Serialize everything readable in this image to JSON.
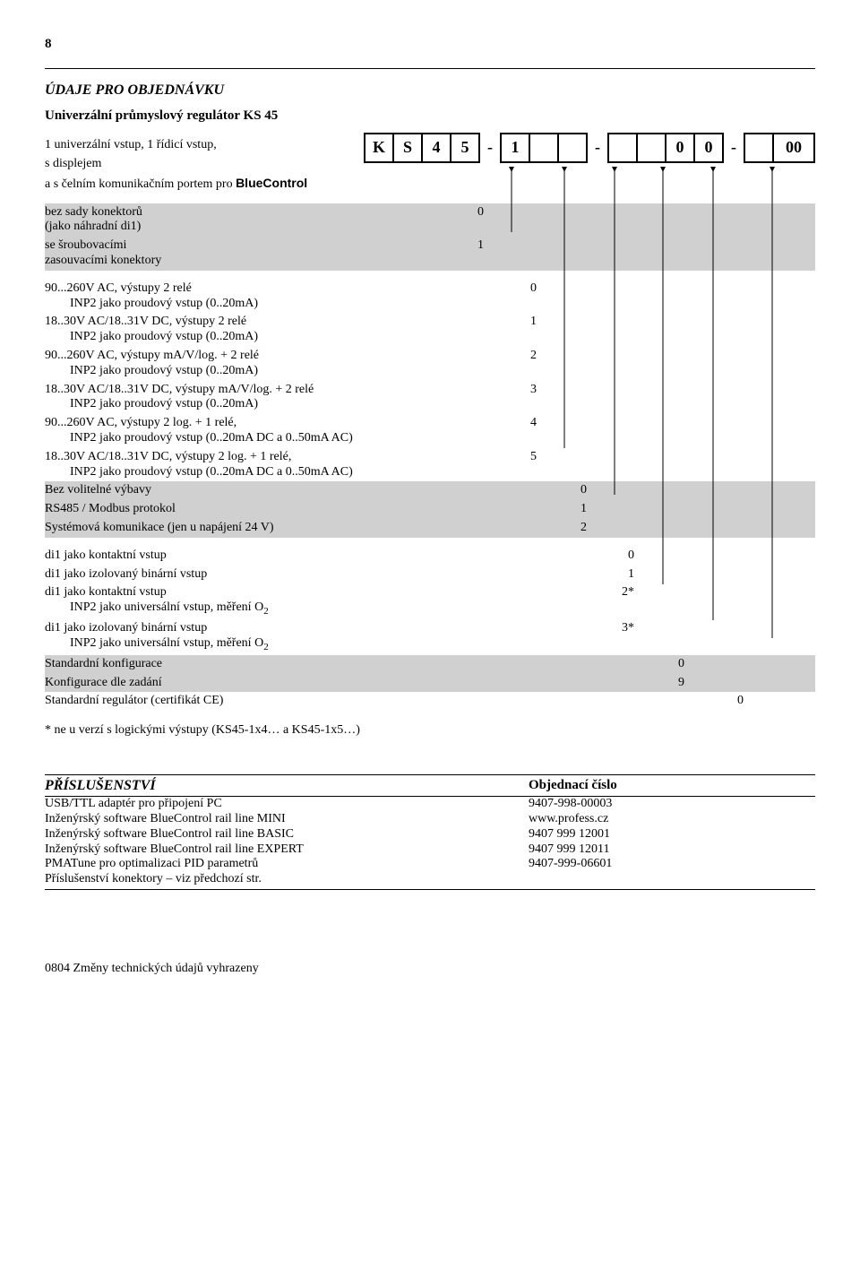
{
  "page_number": "8",
  "section_title": "ÚDAJE PRO OBJEDNÁVKU",
  "subtitle": "Univerzální průmyslový regulátor KS 45",
  "code_cells": [
    "K",
    "S",
    "4",
    "5",
    "-",
    "1",
    "",
    "",
    "-",
    "",
    "",
    "0",
    "0",
    "-",
    "",
    "00"
  ],
  "intro_line1": "1 univerzální vstup, 1 řídicí vstup,",
  "intro_line2": "s displejem",
  "intro_line3_a": "a s čelním komunikačním portem pro ",
  "intro_line3_b": "BlueControl",
  "r_gray1_a": {
    "label": "bez sady konektorů (jako náhradní di1)",
    "val": "0"
  },
  "r_gray1_b": {
    "label": "se šroubovacími zasouvacími konektory",
    "val": "1"
  },
  "r_g2_a": {
    "label": "90...260V AC, výstupy 2 relé",
    "sub": "INP2 jako proudový vstup (0..20mA)",
    "val": "0"
  },
  "r_g2_b": {
    "label": "18..30V AC/18..31V DC, výstupy 2 relé",
    "sub": "INP2 jako proudový vstup (0..20mA)",
    "val": "1"
  },
  "r_g2_c": {
    "label": "90...260V AC, výstupy mA/V/log. + 2 relé",
    "sub": "INP2 jako proudový vstup (0..20mA)",
    "val": "2"
  },
  "r_g2_d": {
    "label": "18..30V AC/18..31V DC, výstupy mA/V/log. + 2 relé",
    "sub": "INP2 jako proudový vstup (0..20mA)",
    "val": "3"
  },
  "r_g2_e": {
    "label": "90...260V AC, výstupy 2 log. + 1 relé,",
    "sub": "INP2 jako proudový vstup (0..20mA DC a 0..50mA AC)",
    "val": "4"
  },
  "r_g2_f": {
    "label": "18..30V AC/18..31V DC, výstupy 2 log. + 1 relé,",
    "sub": "INP2 jako proudový vstup (0..20mA DC a 0..50mA AC)",
    "val": "5"
  },
  "r_gray2_a": {
    "label": "Bez volitelné výbavy",
    "val": "0"
  },
  "r_gray2_b": {
    "label": "RS485 / Modbus protokol",
    "val": "1"
  },
  "r_gray2_c": {
    "label": "Systémová komunikace (jen u napájení 24 V)",
    "val": "2"
  },
  "r_g3_a": {
    "label": "di1 jako kontaktní vstup",
    "val": "0"
  },
  "r_g3_b": {
    "label": "di1 jako izolovaný binární vstup",
    "val": "1"
  },
  "r_g3_c": {
    "label": "di1 jako kontaktní vstup",
    "sub_html": "INP2 jako universální vstup, měření O<sub>2</sub>",
    "val": "2*"
  },
  "r_g3_d": {
    "label": "di1 jako izolovaný binární vstup",
    "sub_html": "INP2 jako universální vstup, měření O<sub>2</sub>",
    "val": "3*"
  },
  "r_gray3_a": {
    "label": "Standardní konfigurace",
    "val": "0"
  },
  "r_gray3_b": {
    "label": "Konfigurace dle zadání",
    "val": "9"
  },
  "r_last": {
    "label": "Standardní regulátor (certifikát CE)",
    "val": "0"
  },
  "footnote": "* ne u verzí s logickými výstupy (KS45-1x4… a KS45-1x5…)",
  "acc_title_left": "PŘÍSLUŠENSTVÍ",
  "acc_title_right": "Objednací číslo",
  "acc_rows": [
    {
      "left": "USB/TTL adaptér pro připojení PC",
      "right": "9407-998-00003"
    },
    {
      "left": "Inženýrský software BlueControl rail line MINI",
      "right": "www.profess.cz"
    },
    {
      "left": "Inženýrský software BlueControl rail line BASIC",
      "right": "9407 999 12001"
    },
    {
      "left": "Inženýrský software BlueControl rail line EXPERT",
      "right": "9407 999 12011"
    },
    {
      "left": "PMATune pro optimalizaci PID parametrů",
      "right": "9407-999-06601"
    },
    {
      "left": "Příslušenství konektory – viz předchozí str.",
      "right": ""
    }
  ],
  "footer": "0804 Změny technických údajů vyhrazeny"
}
